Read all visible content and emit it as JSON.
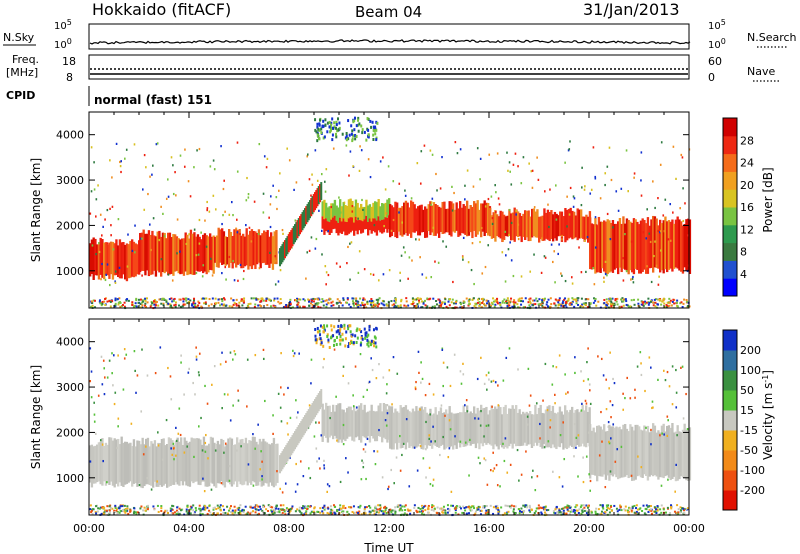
{
  "header": {
    "station": "Hokkaido (fitACF)",
    "beam": "Beam 04",
    "date": "31/Jan/2013"
  },
  "strips": {
    "nsky_label": "N.Sky",
    "nsearch_label": "N.Search",
    "freq_label_1": "Freq.",
    "freq_label_2": "[MHz]",
    "nave_label": "Nave",
    "cpid_label": "CPID",
    "cpid_value": "normal (fast) 151",
    "nsky_ticks": [
      "10^5",
      "10^0"
    ],
    "nsearch_ticks": [
      "10^5",
      "10^0"
    ],
    "freq_ticks": [
      "18",
      "8"
    ],
    "nave_ticks": [
      "60",
      "0"
    ]
  },
  "chart_data": [
    {
      "type": "heatmap",
      "name": "power",
      "ylabel": "Slant Range [km]",
      "xlabel": "",
      "ylim": [
        180,
        4500
      ],
      "xlim": [
        0,
        24
      ],
      "yticks": [
        1000,
        2000,
        3000,
        4000
      ],
      "colorbar_label": "Power [dB]",
      "colorbar_ticks": [
        "4",
        "8",
        "12",
        "16",
        "20",
        "24",
        "28"
      ],
      "colorbar_colors": [
        "#0000ff",
        "#2050d0",
        "#3a7a40",
        "#2e9a4e",
        "#79c442",
        "#d8c422",
        "#f0a020",
        "#f56c1a",
        "#ee2812",
        "#d00000"
      ],
      "echo_bands": [
        {
          "t0": 0.0,
          "t1": 2.0,
          "lo": 850,
          "hi": 1650,
          "value": "red"
        },
        {
          "t0": 2.0,
          "t1": 5.0,
          "lo": 950,
          "hi": 1800,
          "value": "red"
        },
        {
          "t0": 5.0,
          "t1": 7.5,
          "lo": 1100,
          "hi": 1850,
          "value": "red"
        },
        {
          "t0": 9.3,
          "t1": 12.0,
          "lo": 1850,
          "hi": 2500,
          "value": "mixed"
        },
        {
          "t0": 12.0,
          "t1": 16.0,
          "lo": 1800,
          "hi": 2450,
          "value": "red"
        },
        {
          "t0": 16.0,
          "t1": 20.0,
          "lo": 1700,
          "hi": 2300,
          "value": "red"
        },
        {
          "t0": 20.0,
          "t1": 24.0,
          "lo": 1000,
          "hi": 2100,
          "value": "red"
        }
      ]
    },
    {
      "type": "heatmap",
      "name": "velocity",
      "ylabel": "Slant Range [km]",
      "xlabel": "Time UT",
      "ylim": [
        180,
        4500
      ],
      "xlim": [
        0,
        24
      ],
      "yticks": [
        1000,
        2000,
        3000,
        4000
      ],
      "xticks": [
        "00:00",
        "04:00",
        "08:00",
        "12:00",
        "16:00",
        "20:00",
        "00:00"
      ],
      "colorbar_label": "Velocity [m s^-1]",
      "colorbar_ticks": [
        "200",
        "100",
        "50",
        "15",
        "-15",
        "-50",
        "-100",
        "-200"
      ],
      "colorbar_colors": [
        "#1030c8",
        "#2f6fa0",
        "#3a9040",
        "#55c038",
        "#c8c8c0",
        "#f0b020",
        "#f28a18",
        "#ee5010",
        "#e01000"
      ],
      "echo_bands": [
        {
          "t0": 0.0,
          "t1": 7.5,
          "lo": 850,
          "hi": 1800,
          "value": "grey"
        },
        {
          "t0": 9.3,
          "t1": 12.0,
          "lo": 1850,
          "hi": 2550,
          "value": "grey"
        },
        {
          "t0": 12.0,
          "t1": 20.0,
          "lo": 1700,
          "hi": 2500,
          "value": "grey"
        },
        {
          "t0": 20.0,
          "t1": 24.0,
          "lo": 1000,
          "hi": 2100,
          "value": "grey"
        }
      ]
    }
  ]
}
